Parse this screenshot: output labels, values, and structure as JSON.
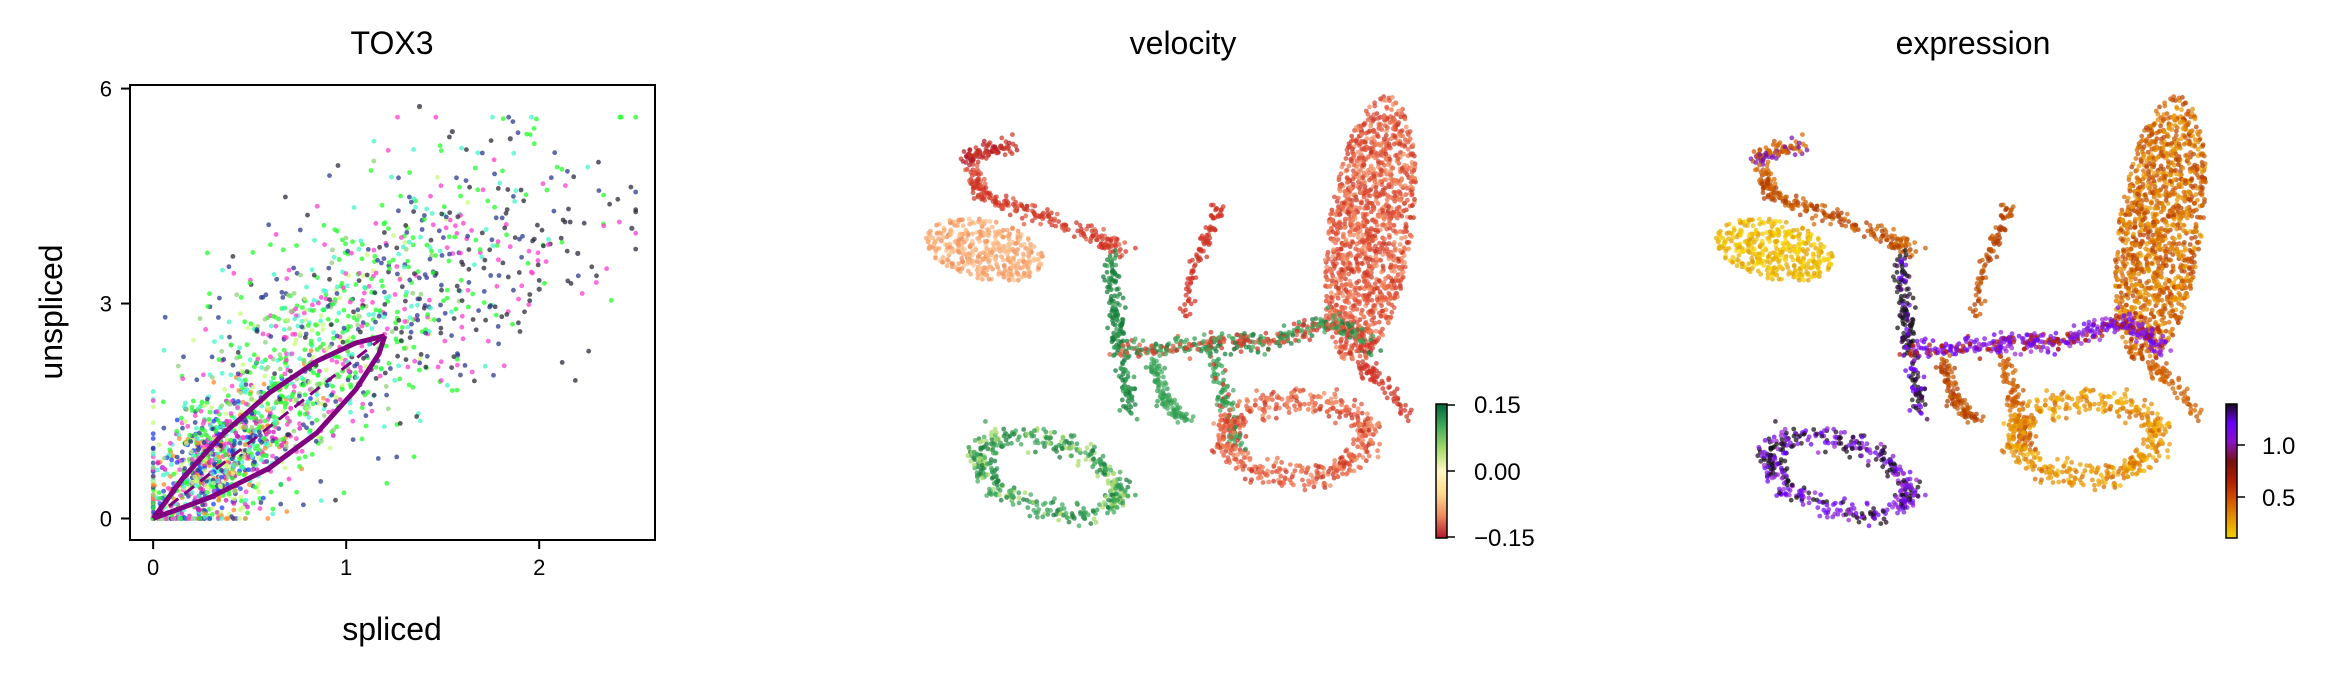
{
  "chart_data": [
    {
      "type": "scatter",
      "title": "TOX3",
      "xlabel": "spliced",
      "ylabel": "unspliced",
      "xlim": [
        -0.12,
        2.6
      ],
      "ylim": [
        -0.3,
        6.05
      ],
      "xticks": [
        0,
        1,
        2
      ],
      "yticks": [
        0,
        3,
        6
      ],
      "grid": false,
      "legend": "none",
      "point_colors": [
        "#ff3ccf",
        "#1fff29",
        "#2a3a8f",
        "#1f3dff",
        "#3ff7c9",
        "#c8ff7a",
        "#ff8a2a",
        "#2a2a3a",
        "#8fd17a",
        "#d21ab8"
      ],
      "cluster_centers": [
        {
          "x": 0.3,
          "y": 0.7,
          "spread": [
            0.22,
            0.45
          ]
        },
        {
          "x": 0.8,
          "y": 2.2,
          "spread": [
            0.35,
            0.8
          ]
        },
        {
          "x": 1.3,
          "y": 3.3,
          "spread": [
            0.45,
            0.9
          ]
        },
        {
          "x": 1.8,
          "y": 3.2,
          "spread": [
            0.35,
            0.6
          ]
        }
      ],
      "fit_curve": {
        "color": "#800080",
        "upper": [
          [
            0,
            0
          ],
          [
            0.15,
            0.55
          ],
          [
            0.35,
            1.15
          ],
          [
            0.6,
            1.75
          ],
          [
            0.85,
            2.2
          ],
          [
            1.05,
            2.45
          ],
          [
            1.2,
            2.55
          ]
        ],
        "lower": [
          [
            0,
            0
          ],
          [
            0.3,
            0.3
          ],
          [
            0.6,
            0.7
          ],
          [
            0.85,
            1.2
          ],
          [
            1.05,
            1.8
          ],
          [
            1.17,
            2.3
          ],
          [
            1.2,
            2.55
          ]
        ],
        "steady_state_line": [
          [
            0,
            0
          ],
          [
            1.2,
            2.55
          ]
        ]
      },
      "outliers": [
        [
          1.38,
          5.75
        ],
        [
          2.48,
          4.05
        ],
        [
          1.55,
          5.4
        ],
        [
          1.85,
          5.3
        ],
        [
          2.2,
          3.7
        ],
        [
          2.0,
          3.2
        ]
      ]
    },
    {
      "type": "scatter",
      "title": "velocity",
      "colorbar": {
        "ticks": [
          "0.15",
          "0.00",
          "−0.15"
        ],
        "range": [
          -0.15,
          0.15
        ],
        "colors": [
          "#b2182b",
          "#ef8a62",
          "#fddb8f",
          "#fff7c4",
          "#a6d96a",
          "#41ab5d",
          "#006837"
        ]
      },
      "embedding": "umap"
    },
    {
      "type": "scatter",
      "title": "expression",
      "colorbar": {
        "ticks": [
          "1.0",
          "0.5"
        ],
        "range": [
          0.22,
          1.38
        ],
        "colors": [
          "#f2d100",
          "#e69500",
          "#d35400",
          "#b01c00",
          "#7a1010",
          "#8a10c8",
          "#6a00ff",
          "#1a0a1a"
        ]
      },
      "embedding": "umap"
    }
  ]
}
